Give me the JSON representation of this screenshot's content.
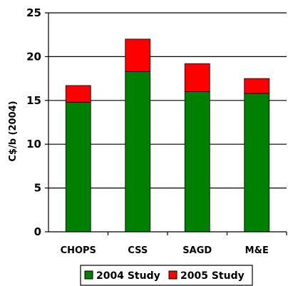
{
  "chart_data": {
    "type": "bar",
    "stacked": true,
    "categories": [
      "CHOPS",
      "CSS",
      "SAGD",
      "M&E"
    ],
    "series": [
      {
        "name": "2004 Study",
        "values": [
          14.8,
          18.3,
          16.0,
          15.8
        ],
        "color": "#008000"
      },
      {
        "name": "2005 Study",
        "values": [
          1.9,
          3.7,
          3.2,
          1.7
        ],
        "color": "#ff0000"
      }
    ],
    "ylabel": "C$/b (2004)",
    "xlabel": "",
    "ylim": [
      0,
      25
    ],
    "yticks": [
      0,
      5,
      10,
      15,
      20,
      25
    ],
    "grid": true,
    "legend_position": "bottom"
  }
}
